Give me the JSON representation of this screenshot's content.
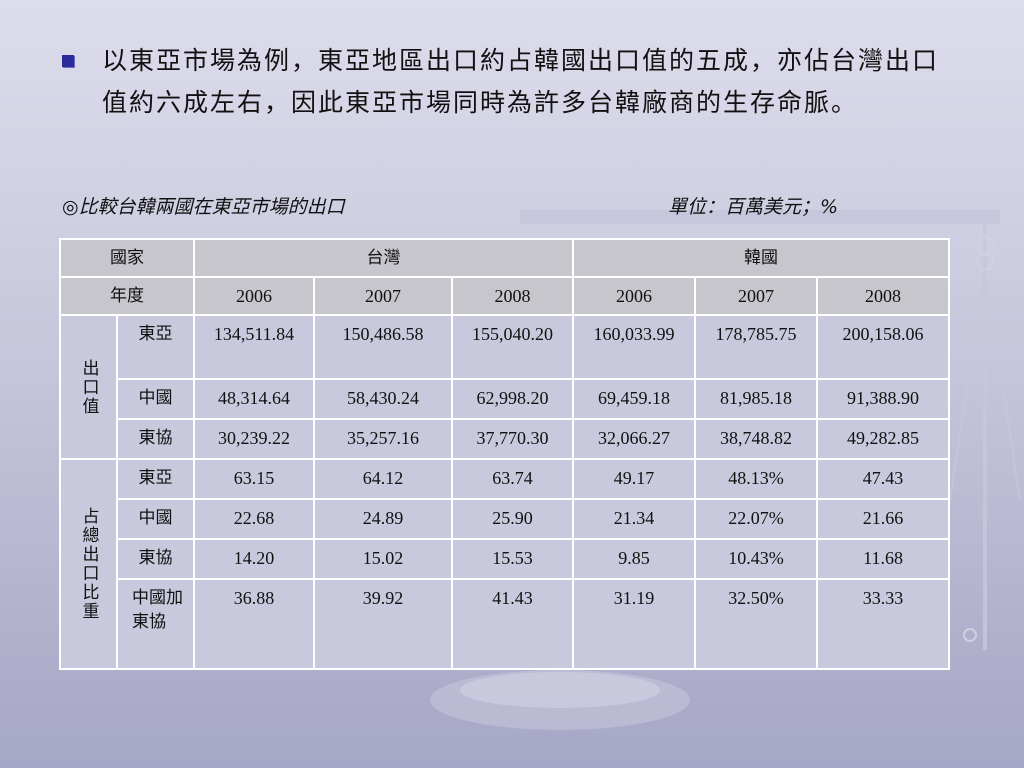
{
  "bullet": {
    "text": "以東亞市場為例，東亞地區出口約占韓國出口值的五成，亦佔台灣出口值約六成左右，因此東亞市場同時為許多台韓廠商的生存命脈。"
  },
  "caption": "◎比較台韓兩國在東亞市場的出口",
  "unit": "單位：百萬美元；%",
  "table": {
    "header": {
      "country_label": "國家",
      "taiwan": "台灣",
      "korea": "韓國",
      "year_label": "年度",
      "years": [
        "2006",
        "2007",
        "2008",
        "2006",
        "2007",
        "2008"
      ]
    },
    "group_export": "出口值",
    "group_share": "占總出口比重",
    "export_rows": [
      {
        "label": "東亞",
        "values": [
          "134,511.84",
          "150,486.58",
          "155,040.20",
          "160,033.99",
          "178,785.75",
          "200,158.06"
        ]
      },
      {
        "label": "中國",
        "values": [
          "48,314.64",
          "58,430.24",
          "62,998.20",
          "69,459.18",
          "81,985.18",
          "91,388.90"
        ]
      },
      {
        "label": "東協",
        "values": [
          "30,239.22",
          "35,257.16",
          "37,770.30",
          "32,066.27",
          "38,748.82",
          "49,282.85"
        ]
      }
    ],
    "share_rows": [
      {
        "label": "東亞",
        "values": [
          "63.15",
          "64.12",
          "63.74",
          "49.17",
          "48.13%",
          "47.43"
        ]
      },
      {
        "label": "中國",
        "values": [
          "22.68",
          "24.89",
          "25.90",
          "21.34",
          "22.07%",
          "21.66"
        ]
      },
      {
        "label": "東協",
        "values": [
          "14.20",
          "15.02",
          "15.53",
          "9.85",
          "10.43%",
          "11.68"
        ]
      },
      {
        "label": "中國加東協",
        "values": [
          "36.88",
          "39.92",
          "41.43",
          "31.19",
          "32.50%",
          "33.33"
        ]
      }
    ]
  }
}
